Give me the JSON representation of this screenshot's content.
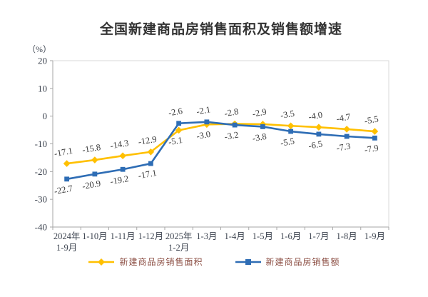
{
  "chart_data": {
    "type": "line",
    "title": "全国新建商品房销售面积及销售额增速",
    "ylabel": "（%）",
    "ylim": [
      -40,
      20
    ],
    "yticks": [
      20,
      10,
      0,
      -10,
      -20,
      -30,
      -40
    ],
    "grid": false,
    "legend_position": "bottom",
    "categories": [
      "2024年\n1-9月",
      "1-10月",
      "1-11月",
      "1-12月",
      "2025年\n1-2月",
      "1-3月",
      "1-4月",
      "1-5月",
      "1-6月",
      "1-7月",
      "1-8月",
      "1-9月"
    ],
    "series": [
      {
        "name": "新建商品房销售面积",
        "marker": "diamond",
        "color": "#FFC000",
        "values": [
          -17.1,
          -15.8,
          -14.3,
          -12.9,
          -5.1,
          -3.0,
          -2.8,
          -2.9,
          -3.5,
          -4.0,
          -4.7,
          -5.5
        ]
      },
      {
        "name": "新建商品房销售额",
        "marker": "square",
        "color": "#2E6DB5",
        "values": [
          -22.7,
          -20.9,
          -19.2,
          -17.1,
          -2.6,
          -2.1,
          -3.2,
          -3.8,
          -5.5,
          -6.5,
          -7.3,
          -7.9
        ]
      }
    ],
    "label_decimals": 1
  },
  "colors": {
    "background": "#ffffff",
    "title_text": "#333333",
    "axis_line": "#a6a6a6",
    "plot_border": "#d9d9d9",
    "tick_text": "#3d4450",
    "data_label_text": "#3a3a3a",
    "legend_text": "#8B4D42",
    "series_area": "#FFC000",
    "series_amount": "#2E6DB5"
  }
}
